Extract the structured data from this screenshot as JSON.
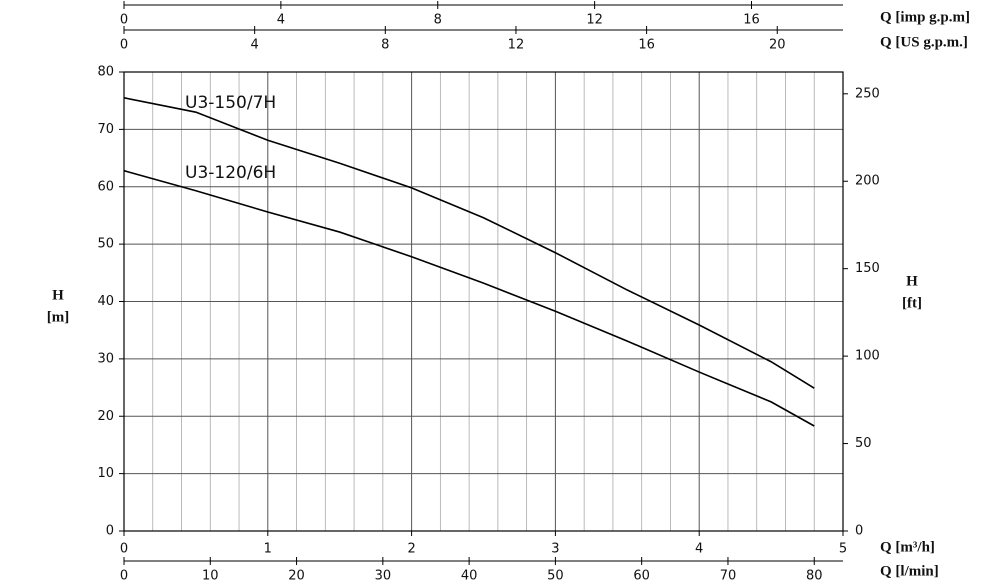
{
  "chart_data": {
    "type": "line",
    "x": [
      0,
      0.5,
      1,
      1.5,
      2,
      2.5,
      3,
      3.5,
      4,
      4.5,
      4.8
    ],
    "series": [
      {
        "name": "U3-150/7H",
        "color": "#000000",
        "values": [
          75.5,
          73.0,
          68.1,
          64.1,
          59.8,
          54.6,
          48.5,
          42.0,
          35.9,
          29.5,
          24.9
        ]
      },
      {
        "name": "U3-120/6H",
        "color": "#000000",
        "values": [
          62.8,
          59.3,
          55.6,
          52.1,
          47.8,
          43.2,
          38.3,
          33.1,
          27.7,
          22.5,
          18.3
        ]
      }
    ],
    "xlabel": "Q [m³/h]",
    "xlim": [
      0,
      5
    ],
    "xticks": [
      0,
      1,
      2,
      3,
      4,
      5
    ],
    "x_minor_ticks": [
      0.2,
      0.4,
      0.6,
      0.8,
      1.2,
      1.4,
      1.6,
      1.8,
      2.2,
      2.4,
      2.6,
      2.8,
      3.2,
      3.4,
      3.6,
      3.8,
      4.2,
      4.4,
      4.6,
      4.8
    ],
    "ylabel": "H",
    "yunit": "[m]",
    "ylim": [
      0,
      80
    ],
    "yticks": [
      0,
      10,
      20,
      30,
      40,
      50,
      60,
      70,
      80
    ],
    "y2label": "H",
    "y2unit": "[ft]",
    "y2lim": [
      0,
      262.47
    ],
    "y2ticks": [
      0,
      50,
      100,
      150,
      200,
      250
    ],
    "grid": true,
    "extra_x_axes": [
      {
        "label": "Q [l/min]",
        "lim": [
          0,
          83.333
        ],
        "ticks": [
          0,
          10,
          20,
          30,
          40,
          50,
          60,
          70,
          80
        ],
        "position": "bottom"
      },
      {
        "label": "Q [imp g.p.m]",
        "lim": [
          0,
          18.333
        ],
        "ticks": [
          0,
          4,
          8,
          12,
          16
        ],
        "position": "top"
      },
      {
        "label": "Q [US g.p.m.]",
        "lim": [
          0,
          22.013
        ],
        "ticks": [
          0,
          4,
          8,
          12,
          16,
          20
        ],
        "position": "top"
      }
    ]
  }
}
